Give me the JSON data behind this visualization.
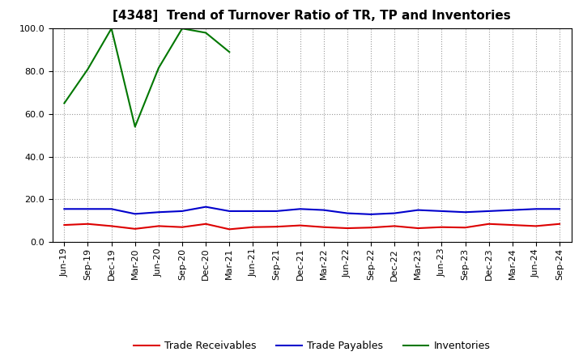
{
  "title": "[4348]  Trend of Turnover Ratio of TR, TP and Inventories",
  "x_labels": [
    "Jun-19",
    "Sep-19",
    "Dec-19",
    "Mar-20",
    "Jun-20",
    "Sep-20",
    "Dec-20",
    "Mar-21",
    "Jun-21",
    "Sep-21",
    "Dec-21",
    "Mar-22",
    "Jun-22",
    "Sep-22",
    "Dec-22",
    "Mar-23",
    "Jun-23",
    "Sep-23",
    "Dec-23",
    "Mar-24",
    "Jun-24",
    "Sep-24"
  ],
  "trade_receivables": [
    8.0,
    8.5,
    7.5,
    6.2,
    7.5,
    7.0,
    8.5,
    6.0,
    7.0,
    7.2,
    7.8,
    7.0,
    6.5,
    6.8,
    7.5,
    6.5,
    7.0,
    6.8,
    8.5,
    8.0,
    7.5,
    8.5
  ],
  "trade_payables": [
    15.5,
    15.5,
    15.5,
    13.2,
    14.0,
    14.5,
    16.5,
    14.5,
    14.5,
    14.5,
    15.5,
    15.0,
    13.5,
    13.0,
    13.5,
    15.0,
    14.5,
    14.0,
    14.5,
    15.0,
    15.5,
    15.5
  ],
  "inventories_x": [
    0,
    1,
    2,
    3,
    4,
    5,
    6,
    7
  ],
  "inventories_y": [
    65.0,
    81.0,
    100.0,
    54.0,
    81.5,
    100.0,
    98.0,
    89.0
  ],
  "ylim": [
    0,
    100
  ],
  "yticks": [
    0.0,
    20.0,
    40.0,
    60.0,
    80.0,
    100.0
  ],
  "tr_color": "#dd0000",
  "tp_color": "#0000cc",
  "inv_color": "#007700",
  "background_color": "#ffffff",
  "grid_color": "#999999",
  "title_fontsize": 11,
  "legend_fontsize": 9,
  "tick_fontsize": 8
}
